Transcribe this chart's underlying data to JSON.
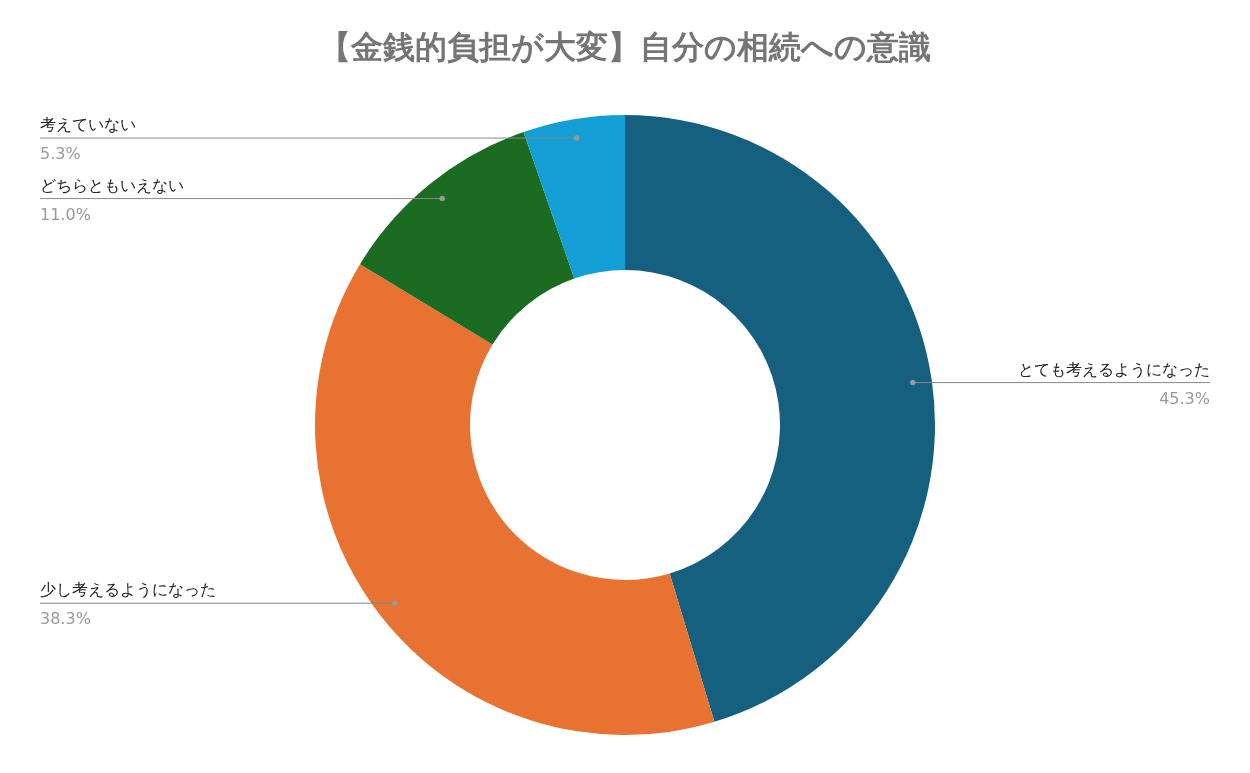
{
  "chart_data": {
    "type": "donut",
    "title": "【金銭的負担が大変】自分の相続への意識",
    "categories": [
      "とても考えるようになった",
      "少し考えるようになった",
      "どちらともいえない",
      "考えていない"
    ],
    "values": [
      45.3,
      38.3,
      11.0,
      5.3
    ],
    "value_labels": [
      "45.3%",
      "38.3%",
      "11.0%",
      "5.3%"
    ],
    "colors": [
      "#16607f",
      "#e87232",
      "#1b6b23",
      "#139ed6"
    ]
  }
}
